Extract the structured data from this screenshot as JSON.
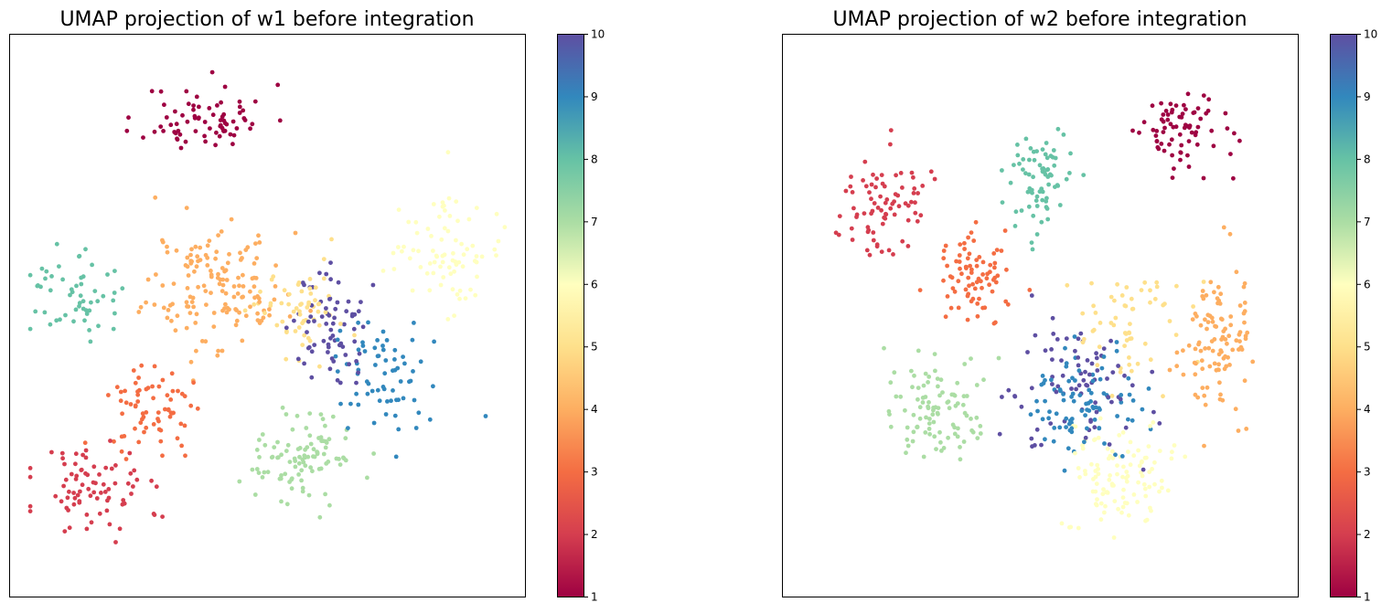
{
  "chart_data": [
    {
      "type": "scatter",
      "title": "UMAP projection of w1 before integration",
      "xlabel": "",
      "ylabel": "",
      "xlim": [
        0,
        100
      ],
      "ylim": [
        0,
        100
      ],
      "grid": false,
      "axis_ticks": false,
      "colormap": "Spectral",
      "colorbar": {
        "min": 1,
        "max": 10,
        "ticks": [
          "1",
          "2",
          "3",
          "4",
          "5",
          "6",
          "7",
          "8",
          "9",
          "10"
        ]
      },
      "clusters": [
        {
          "value": 1,
          "color": "#9e0142",
          "center": [
            38,
            85
          ],
          "spread": [
            11,
            5.5
          ],
          "count": 75
        },
        {
          "value": 2,
          "color": "#d53e4f",
          "center": [
            16,
            19
          ],
          "spread": [
            10,
            8
          ],
          "count": 80
        },
        {
          "value": 3,
          "color": "#f46d43",
          "center": [
            28,
            34
          ],
          "spread": [
            9,
            7
          ],
          "count": 70
        },
        {
          "value": 4,
          "color": "#fdae61",
          "center": [
            40,
            55
          ],
          "spread": [
            12,
            10
          ],
          "count": 150
        },
        {
          "value": 5,
          "color": "#fee08b",
          "center": [
            56,
            52
          ],
          "spread": [
            9,
            8
          ],
          "count": 60
        },
        {
          "value": 6,
          "color": "#ffffbf",
          "center": [
            84,
            62
          ],
          "spread": [
            8,
            10
          ],
          "count": 80
        },
        {
          "value": 7,
          "color": "#abdda4",
          "center": [
            57,
            25
          ],
          "spread": [
            8,
            7
          ],
          "count": 100
        },
        {
          "value": 8,
          "color": "#66c2a5",
          "center": [
            12,
            54
          ],
          "spread": [
            9,
            7
          ],
          "count": 55
        },
        {
          "value": 9,
          "color": "#3288bd",
          "center": [
            72,
            40
          ],
          "spread": [
            8,
            9
          ],
          "count": 70
        },
        {
          "value": 10,
          "color": "#5e4fa2",
          "center": [
            62,
            48
          ],
          "spread": [
            6,
            10
          ],
          "count": 70
        }
      ]
    },
    {
      "type": "scatter",
      "title": "UMAP projection of w2 before integration",
      "xlabel": "",
      "ylabel": "",
      "xlim": [
        0,
        100
      ],
      "ylim": [
        0,
        100
      ],
      "grid": false,
      "axis_ticks": false,
      "colormap": "Spectral",
      "colorbar": {
        "min": 1,
        "max": 10,
        "ticks": [
          "1",
          "2",
          "3",
          "4",
          "5",
          "6",
          "7",
          "8",
          "9",
          "10"
        ]
      },
      "clusters": [
        {
          "value": 1,
          "color": "#9e0142",
          "center": [
            77,
            83
          ],
          "spread": [
            8,
            6
          ],
          "count": 75
        },
        {
          "value": 2,
          "color": "#d53e4f",
          "center": [
            18,
            70
          ],
          "spread": [
            8,
            9
          ],
          "count": 80
        },
        {
          "value": 3,
          "color": "#f46d43",
          "center": [
            37,
            57
          ],
          "spread": [
            7,
            7
          ],
          "count": 80
        },
        {
          "value": 4,
          "color": "#fdae61",
          "center": [
            84,
            45
          ],
          "spread": [
            6,
            11
          ],
          "count": 110
        },
        {
          "value": 5,
          "color": "#fee08b",
          "center": [
            68,
            48
          ],
          "spread": [
            10,
            10
          ],
          "count": 60
        },
        {
          "value": 6,
          "color": "#ffffbf",
          "center": [
            66,
            22
          ],
          "spread": [
            10,
            10
          ],
          "count": 110
        },
        {
          "value": 7,
          "color": "#abdda4",
          "center": [
            30,
            33
          ],
          "spread": [
            9,
            8
          ],
          "count": 100
        },
        {
          "value": 8,
          "color": "#66c2a5",
          "center": [
            50,
            75
          ],
          "spread": [
            6,
            8
          ],
          "count": 75
        },
        {
          "value": 9,
          "color": "#3288bd",
          "center": [
            58,
            34
          ],
          "spread": [
            9,
            8
          ],
          "count": 90
        },
        {
          "value": 10,
          "color": "#5e4fa2",
          "center": [
            57,
            38
          ],
          "spread": [
            12,
            10
          ],
          "count": 80
        }
      ]
    }
  ]
}
